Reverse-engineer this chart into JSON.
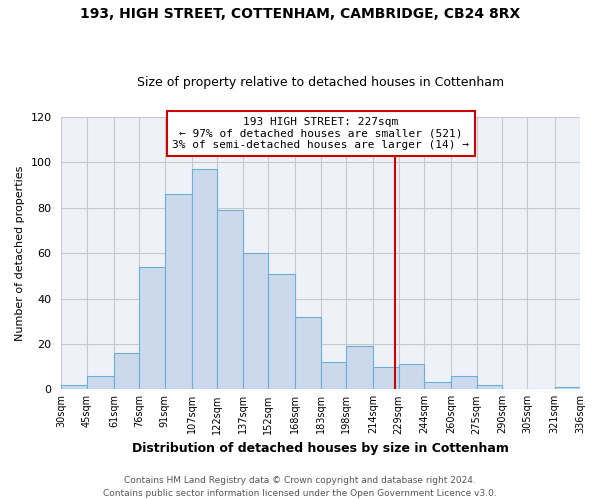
{
  "title1": "193, HIGH STREET, COTTENHAM, CAMBRIDGE, CB24 8RX",
  "title2": "Size of property relative to detached houses in Cottenham",
  "xlabel": "Distribution of detached houses by size in Cottenham",
  "ylabel": "Number of detached properties",
  "bar_left_edges": [
    30,
    45,
    61,
    76,
    91,
    107,
    122,
    137,
    152,
    168,
    183,
    198,
    214,
    229,
    244,
    260,
    275,
    290,
    305,
    321
  ],
  "bar_heights": [
    2,
    6,
    16,
    54,
    86,
    97,
    79,
    60,
    51,
    32,
    12,
    19,
    10,
    11,
    3,
    6,
    2,
    0,
    0,
    1
  ],
  "bar_widths": [
    15,
    16,
    15,
    15,
    16,
    15,
    15,
    15,
    16,
    15,
    15,
    16,
    15,
    15,
    16,
    15,
    15,
    15,
    16,
    15
  ],
  "bar_color": "#ccd9ed",
  "bar_edge_color": "#6baed6",
  "vline_x": 227,
  "vline_color": "#cc0000",
  "ylim": [
    0,
    120
  ],
  "yticks": [
    0,
    20,
    40,
    60,
    80,
    100,
    120
  ],
  "tick_labels": [
    "30sqm",
    "45sqm",
    "61sqm",
    "76sqm",
    "91sqm",
    "107sqm",
    "122sqm",
    "137sqm",
    "152sqm",
    "168sqm",
    "183sqm",
    "198sqm",
    "214sqm",
    "229sqm",
    "244sqm",
    "260sqm",
    "275sqm",
    "290sqm",
    "305sqm",
    "321sqm",
    "336sqm"
  ],
  "xlim_left": 30,
  "xlim_right": 336,
  "annotation_line1": "193 HIGH STREET: 227sqm",
  "annotation_line2": "← 97% of detached houses are smaller (521)",
  "annotation_line3": "3% of semi-detached houses are larger (14) →",
  "footer1": "Contains HM Land Registry data © Crown copyright and database right 2024.",
  "footer2": "Contains public sector information licensed under the Open Government Licence v3.0.",
  "bg_color": "#ffffff",
  "plot_bg_color": "#eef2f8",
  "grid_color": "#c8c8c8"
}
